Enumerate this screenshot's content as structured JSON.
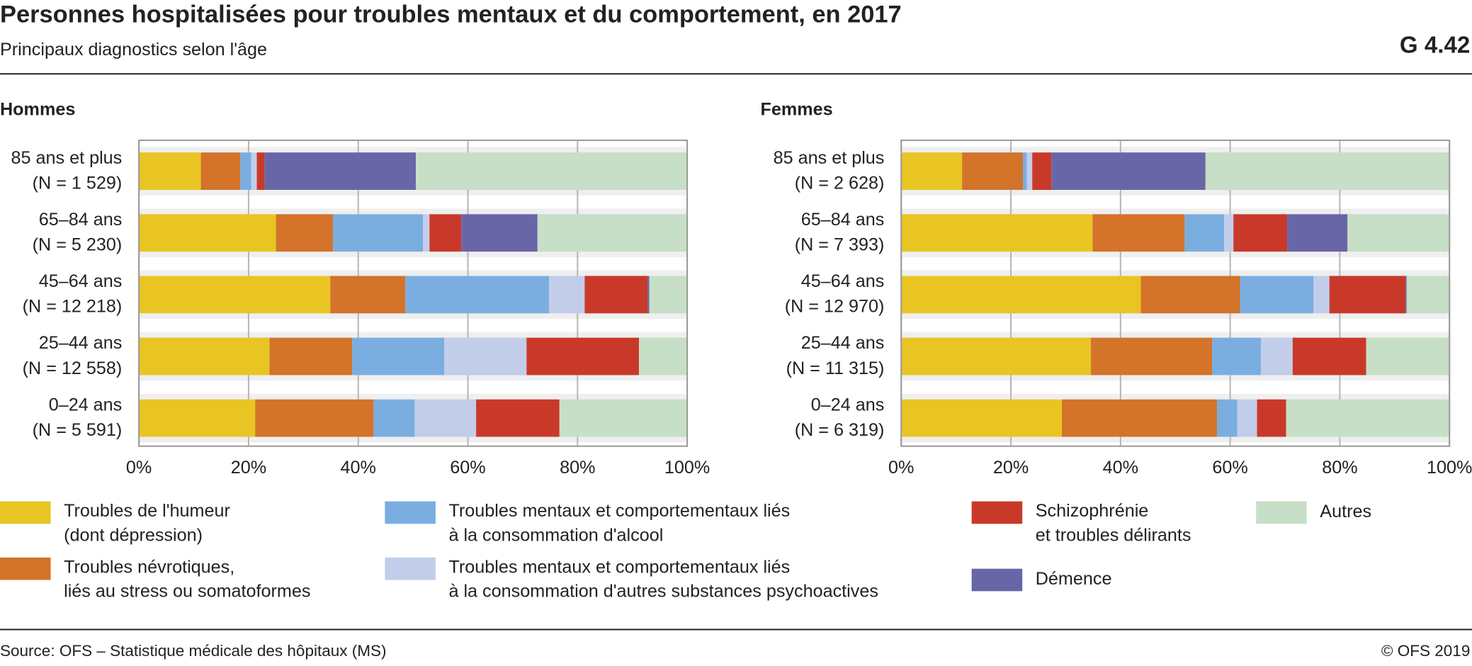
{
  "header": {
    "title": "Personnes hospitalisées pour troubles mentaux et du comportement, en 2017",
    "subtitle": "Principaux diagnostics selon l'âge",
    "code": "G 4.42"
  },
  "chart_data": [
    {
      "type": "bar",
      "orientation": "horizontal",
      "stacked": true,
      "title": "Hommes",
      "categories": [
        "85 ans et plus\n(N = 1 529)",
        "65–84 ans\n(N = 5 230)",
        "45–64 ans\n(N = 12 218)",
        "25–44 ans\n(N = 12 558)",
        "0–24 ans\n(N = 5 591)"
      ],
      "series": [
        {
          "name": "Troubles de l'humeur\n(dont dépression)",
          "color": "#e8c523",
          "values": [
            11.3,
            25.0,
            34.9,
            23.8,
            21.2
          ]
        },
        {
          "name": "Troubles névrotiques,\nliés au stress ou somatoformes",
          "color": "#d4732a",
          "values": [
            7.2,
            10.4,
            13.7,
            15.1,
            21.6
          ]
        },
        {
          "name": "Troubles mentaux et comportementaux liés\nà la consommation d'alcool",
          "color": "#7aaee0",
          "values": [
            2.0,
            16.4,
            26.2,
            16.8,
            7.5
          ]
        },
        {
          "name": "Troubles mentaux et comportementaux liés\nà la consommation d'autres substances psychoactives",
          "color": "#c2cdea",
          "values": [
            1.0,
            1.2,
            6.5,
            15.0,
            11.2
          ]
        },
        {
          "name": "Schizophrénie\net troubles délirants",
          "color": "#c9392a",
          "values": [
            1.4,
            5.8,
            11.5,
            20.5,
            15.2
          ]
        },
        {
          "name": "Démence",
          "color": "#6966a8",
          "values": [
            27.6,
            13.9,
            0.3,
            0,
            0
          ]
        },
        {
          "name": "Autres",
          "color": "#c6dfc6",
          "values": [
            49.5,
            27.3,
            6.9,
            8.8,
            23.3
          ]
        }
      ],
      "xlim": [
        0,
        100
      ],
      "xticks": [
        {
          "value": 0,
          "label": "0%"
        },
        {
          "value": 20,
          "label": "20%"
        },
        {
          "value": 40,
          "label": "40%"
        },
        {
          "value": 60,
          "label": "60%"
        },
        {
          "value": 80,
          "label": "80%"
        },
        {
          "value": 100,
          "label": "100%"
        }
      ],
      "grid": true
    },
    {
      "type": "bar",
      "orientation": "horizontal",
      "stacked": true,
      "title": "Femmes",
      "categories": [
        "85 ans et plus\n(N = 2 628)",
        "65–84 ans\n(N = 7 393)",
        "45–64 ans\n(N = 12 970)",
        "25–44 ans\n(N = 11 315)",
        "0–24 ans\n(N = 6 319)"
      ],
      "series": [
        {
          "name": "Troubles de l'humeur\n(dont dépression)",
          "color": "#e8c523",
          "values": [
            11.1,
            34.9,
            43.7,
            34.6,
            29.3
          ]
        },
        {
          "name": "Troubles névrotiques,\nliés au stress ou somatoformes",
          "color": "#d4732a",
          "values": [
            11.1,
            16.8,
            18.1,
            22.1,
            28.3
          ]
        },
        {
          "name": "Troubles mentaux et comportementaux liés\nà la consommation d'alcool",
          "color": "#7aaee0",
          "values": [
            0.7,
            7.2,
            13.4,
            8.9,
            3.7
          ]
        },
        {
          "name": "Troubles mentaux et comportementaux liés\nà la consommation d'autres substances psychoactives",
          "color": "#c2cdea",
          "values": [
            1.0,
            1.7,
            2.9,
            5.8,
            3.6
          ]
        },
        {
          "name": "Schizophrénie\net troubles délirants",
          "color": "#c9392a",
          "values": [
            3.5,
            9.8,
            13.9,
            13.4,
            5.3
          ]
        },
        {
          "name": "Démence",
          "color": "#6966a8",
          "values": [
            28.1,
            11.0,
            0.2,
            0,
            0
          ]
        },
        {
          "name": "Autres",
          "color": "#c6dfc6",
          "values": [
            44.5,
            18.6,
            7.8,
            15.2,
            29.8
          ]
        }
      ],
      "xlim": [
        0,
        100
      ],
      "xticks": [
        {
          "value": 0,
          "label": "0%"
        },
        {
          "value": 20,
          "label": "20%"
        },
        {
          "value": 40,
          "label": "40%"
        },
        {
          "value": 60,
          "label": "60%"
        },
        {
          "value": 80,
          "label": "80%"
        },
        {
          "value": 100,
          "label": "100%"
        }
      ],
      "grid": true
    }
  ],
  "footer": {
    "source": "Source: OFS – Statistique médicale des hôpitaux (MS)",
    "copyright": "© OFS 2019"
  }
}
